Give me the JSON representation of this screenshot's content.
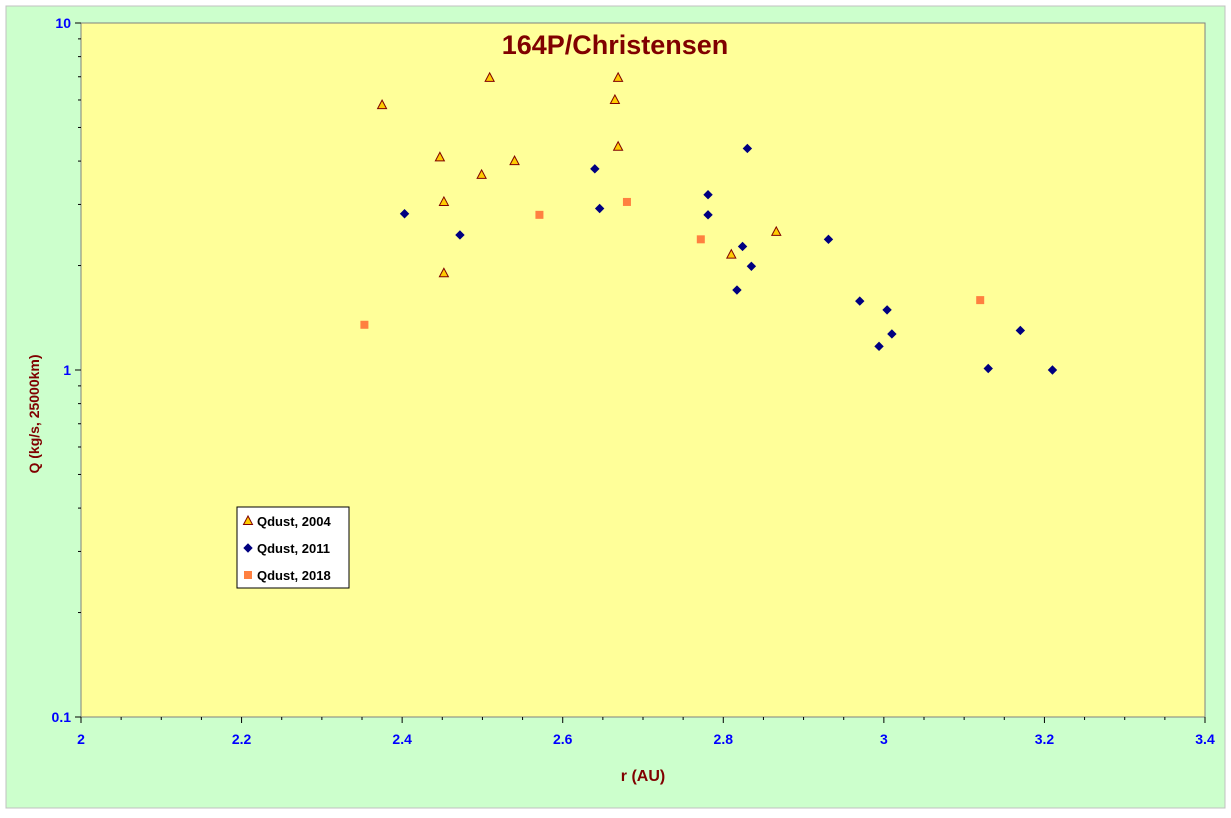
{
  "chart_data": {
    "type": "scatter",
    "title": "164P/Christensen",
    "xlabel": "r (AU)",
    "ylabel": "Q (kg/s, 25000km)",
    "xlim": [
      2,
      3.4
    ],
    "ylim": [
      0.1,
      10
    ],
    "y_scale": "log",
    "x_ticks": [
      "2",
      "2.2",
      "2.4",
      "2.6",
      "2.8",
      "3",
      "3.2",
      "3.4"
    ],
    "x_tick_values": [
      2,
      2.2,
      2.4,
      2.6,
      2.8,
      3,
      3.2,
      3.4
    ],
    "y_ticks": [
      "0.1",
      "1",
      "10"
    ],
    "y_tick_values": [
      0.1,
      1,
      10
    ],
    "grid": false,
    "legend_position": "lower-left",
    "colors": {
      "outer_background": "#ccffcc",
      "plot_background": "#ffff99",
      "title": "#800000",
      "axis_label": "#800000",
      "tick_label": "#0000ff"
    },
    "series": [
      {
        "name": "Qdust, 2004",
        "marker": "triangle",
        "color": "#ffcc00",
        "edge": "#800000",
        "points": [
          [
            2.375,
            5.8
          ],
          [
            2.447,
            4.1
          ],
          [
            2.452,
            3.05
          ],
          [
            2.452,
            1.9
          ],
          [
            2.499,
            3.65
          ],
          [
            2.509,
            6.95
          ],
          [
            2.54,
            4.0
          ],
          [
            2.665,
            6.0
          ],
          [
            2.669,
            6.95
          ],
          [
            2.669,
            4.4
          ],
          [
            2.81,
            2.15
          ],
          [
            2.866,
            2.5
          ]
        ]
      },
      {
        "name": "Qdust, 2011",
        "marker": "diamond",
        "color": "#000080",
        "edge": "#000080",
        "points": [
          [
            2.403,
            2.82
          ],
          [
            2.472,
            2.45
          ],
          [
            2.64,
            3.8
          ],
          [
            2.646,
            2.92
          ],
          [
            2.781,
            3.2
          ],
          [
            2.781,
            2.8
          ],
          [
            2.817,
            1.7
          ],
          [
            2.824,
            2.27
          ],
          [
            2.83,
            4.35
          ],
          [
            2.835,
            1.99
          ],
          [
            2.931,
            2.38
          ],
          [
            2.97,
            1.58
          ],
          [
            2.994,
            1.17
          ],
          [
            3.004,
            1.49
          ],
          [
            3.01,
            1.27
          ],
          [
            3.13,
            1.01
          ],
          [
            3.17,
            1.3
          ],
          [
            3.21,
            1.0
          ]
        ]
      },
      {
        "name": "Qdust, 2018",
        "marker": "square",
        "color": "#ff8040",
        "edge": "#ff8040",
        "points": [
          [
            2.353,
            1.35
          ],
          [
            2.571,
            2.8
          ],
          [
            2.68,
            3.05
          ],
          [
            2.772,
            2.38
          ],
          [
            3.12,
            1.59
          ]
        ]
      }
    ]
  }
}
